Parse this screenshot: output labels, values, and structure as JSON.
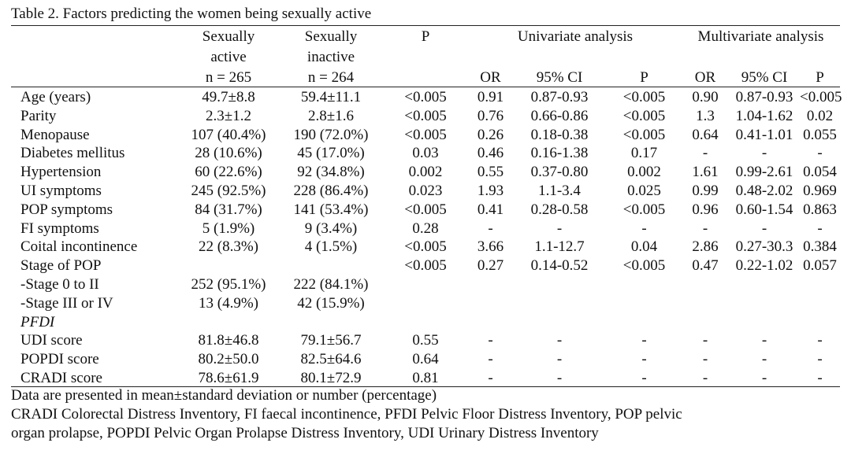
{
  "caption": "Table 2. Factors predicting the women being sexually active",
  "header": {
    "active_l1": "Sexually",
    "active_l2": "active",
    "active_l3": "n = 265",
    "inactive_l1": "Sexually",
    "inactive_l2": "inactive",
    "inactive_l3": "n = 264",
    "p": "P",
    "univariate": "Univariate analysis",
    "multivariate": "Multivariate analysis",
    "or": "OR",
    "ci": "95% CI",
    "p_sub": "P"
  },
  "rows": [
    {
      "label": "Age (years)",
      "italic": false,
      "cells": [
        "49.7±8.8",
        "59.4±11.1",
        "<0.005",
        "0.91",
        "0.87-0.93",
        "<0.005",
        "0.90",
        "0.87-0.93",
        "<0.005"
      ]
    },
    {
      "label": "Parity",
      "italic": false,
      "cells": [
        "2.3±1.2",
        "2.8±1.6",
        "<0.005",
        "0.76",
        "0.66-0.86",
        "<0.005",
        "1.3",
        "1.04-1.62",
        "0.02"
      ]
    },
    {
      "label": "Menopause",
      "italic": false,
      "cells": [
        "107 (40.4%)",
        "190 (72.0%)",
        "<0.005",
        "0.26",
        "0.18-0.38",
        "<0.005",
        "0.64",
        "0.41-1.01",
        "0.055"
      ]
    },
    {
      "label": "Diabetes mellitus",
      "italic": false,
      "cells": [
        "28 (10.6%)",
        "45 (17.0%)",
        "0.03",
        "0.46",
        "0.16-1.38",
        "0.17",
        "-",
        "-",
        "-"
      ]
    },
    {
      "label": "Hypertension",
      "italic": false,
      "cells": [
        "60 (22.6%)",
        "92 (34.8%)",
        "0.002",
        "0.55",
        "0.37-0.80",
        "0.002",
        "1.61",
        "0.99-2.61",
        "0.054"
      ]
    },
    {
      "label": "UI symptoms",
      "italic": false,
      "cells": [
        "245 (92.5%)",
        "228 (86.4%)",
        "0.023",
        "1.93",
        "1.1-3.4",
        "0.025",
        "0.99",
        "0.48-2.02",
        "0.969"
      ]
    },
    {
      "label": "POP symptoms",
      "italic": false,
      "cells": [
        "84 (31.7%)",
        "141 (53.4%)",
        "<0.005",
        "0.41",
        "0.28-0.58",
        "<0.005",
        "0.96",
        "0.60-1.54",
        "0.863"
      ]
    },
    {
      "label": "FI symptoms",
      "italic": false,
      "cells": [
        "5 (1.9%)",
        "9 (3.4%)",
        "0.28",
        "-",
        "-",
        "-",
        "-",
        "-",
        "-"
      ]
    },
    {
      "label": "Coital incontinence",
      "italic": false,
      "cells": [
        "22 (8.3%)",
        "4 (1.5%)",
        "<0.005",
        "3.66",
        "1.1-12.7",
        "0.04",
        "2.86",
        "0.27-30.3",
        "0.384"
      ]
    },
    {
      "label": "Stage of POP",
      "italic": false,
      "cells": [
        "",
        "",
        "<0.005",
        "0.27",
        "0.14-0.52",
        "<0.005",
        "0.47",
        "0.22-1.02",
        "0.057"
      ]
    },
    {
      "label": "-Stage 0 to II",
      "italic": false,
      "cells": [
        "252 (95.1%)",
        "222 (84.1%)",
        "",
        "",
        "",
        "",
        "",
        "",
        ""
      ]
    },
    {
      "label": "-Stage III or IV",
      "italic": false,
      "cells": [
        "13 (4.9%)",
        "42 (15.9%)",
        "",
        "",
        "",
        "",
        "",
        "",
        ""
      ]
    },
    {
      "label": "PFDI",
      "italic": true,
      "cells": [
        "",
        "",
        "",
        "",
        "",
        "",
        "",
        "",
        ""
      ]
    },
    {
      "label": "UDI score",
      "italic": false,
      "cells": [
        "81.8±46.8",
        "79.1±56.7",
        "0.55",
        "-",
        "-",
        "-",
        "-",
        "-",
        "-"
      ]
    },
    {
      "label": "POPDI score",
      "italic": false,
      "cells": [
        "80.2±50.0",
        "82.5±64.6",
        "0.64",
        "-",
        "-",
        "-",
        "-",
        "-",
        "-"
      ]
    },
    {
      "label": "CRADI score",
      "italic": false,
      "cells": [
        "78.6±61.9",
        "80.1±72.9",
        "0.81",
        "-",
        "-",
        "-",
        "-",
        "-",
        "-"
      ]
    }
  ],
  "footnotes": [
    "Data are presented in mean±standard deviation or number (percentage)",
    "CRADI Colorectal Distress Inventory, FI faecal incontinence, PFDI Pelvic Floor Distress Inventory, POP pelvic",
    "organ prolapse, POPDI Pelvic Organ Prolapse Distress Inventory, UDI Urinary Distress Inventory"
  ]
}
